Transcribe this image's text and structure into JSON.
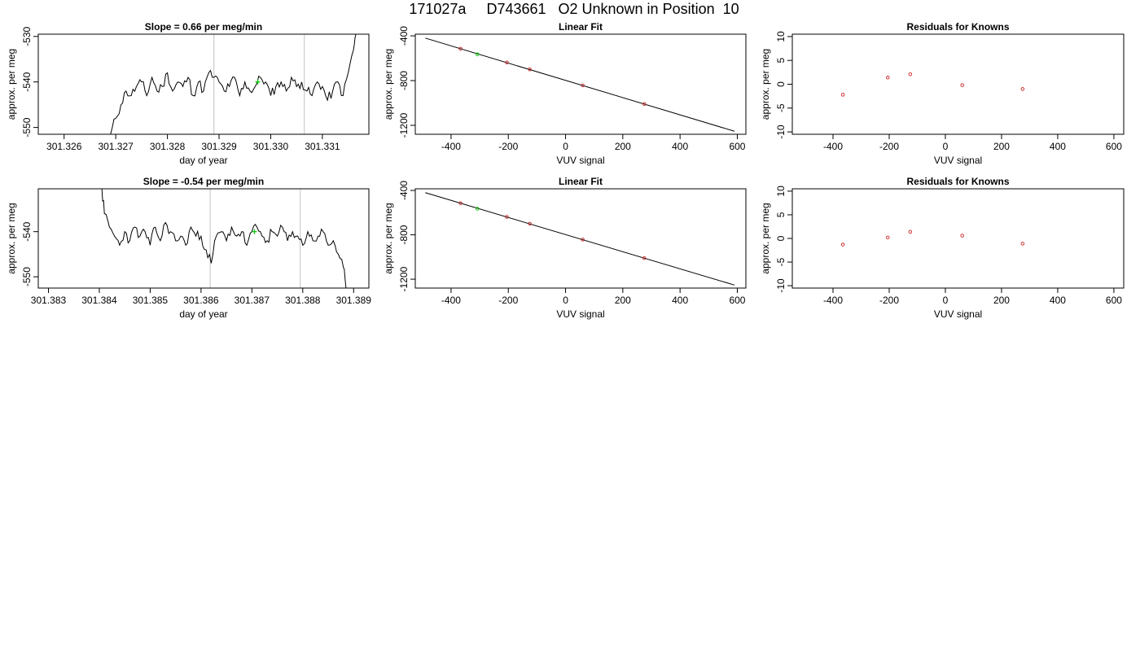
{
  "figure": {
    "title": "171027a     D743661   O2 Unknown in Position  10"
  },
  "chart_data": [
    {
      "type": "line",
      "title": "Slope =  0.66  per meg/min",
      "xlabel": "day of year",
      "ylabel": "approx. per meg",
      "xlim": [
        301.3255,
        301.3319
      ],
      "ylim": [
        -551.5,
        -529.5
      ],
      "xticks": [
        "301.326",
        "301.327",
        "301.328",
        "301.329",
        "301.330",
        "301.331"
      ],
      "yticks": [
        "-530",
        "-540",
        "-550"
      ],
      "vlines": [
        301.3289,
        301.33065
      ],
      "vline_color": "#cccccc",
      "line_color": "#000000",
      "marker": {
        "x": 301.32975,
        "y": -540.0,
        "color": "#00cc00"
      },
      "seed": 11,
      "x": [
        301.3269,
        301.327,
        301.3271,
        301.3272,
        301.3273,
        301.3274,
        301.3275,
        301.3276,
        301.3277,
        301.3278,
        301.3279,
        301.328,
        301.3281,
        301.3282,
        301.3283,
        301.3284,
        301.3285,
        301.3286,
        301.3287,
        301.3288,
        301.3289,
        301.329,
        301.3291,
        301.3292,
        301.3293,
        301.3294,
        301.3295,
        301.3296,
        301.3297,
        301.3298,
        301.3299,
        301.33,
        301.3301,
        301.3302,
        301.3303,
        301.3304,
        301.3305,
        301.3306,
        301.3307,
        301.3308,
        301.3309,
        301.331,
        301.3311,
        301.3312,
        301.3313,
        301.3314,
        301.3315,
        301.3316,
        301.33165
      ],
      "y": [
        -551.5,
        -548,
        -545,
        -542,
        -543,
        -541,
        -540,
        -543,
        -539,
        -542,
        -541,
        -538,
        -542,
        -540,
        -541,
        -539,
        -543,
        -540,
        -542,
        -538,
        -539,
        -540,
        -542,
        -541,
        -539,
        -543,
        -540,
        -542,
        -541,
        -539,
        -540,
        -543,
        -541,
        -540,
        -542,
        -539,
        -541,
        -540,
        -542,
        -543,
        -540,
        -541,
        -544,
        -542,
        -540,
        -543,
        -538,
        -533,
        -529.5
      ]
    },
    {
      "type": "scatter+line",
      "title": "Linear Fit",
      "xlabel": "VUV signal",
      "ylabel": "approx. per meg",
      "xlim": [
        -525,
        630
      ],
      "ylim": [
        -1280,
        -385
      ],
      "xticks": [
        "-400",
        "-200",
        "0",
        "200",
        "400",
        "600"
      ],
      "yticks": [
        "-400",
        "-800",
        "-1200"
      ],
      "fit_line": {
        "x": [
          -490,
          590
        ],
        "y": [
          -420,
          -1253
        ]
      },
      "knowns": {
        "x": [
          -367,
          -205,
          -125,
          60,
          275
        ],
        "y": [
          -515,
          -638,
          -700,
          -843,
          -1010
        ],
        "color": "#cc2222"
      },
      "unknown": {
        "x": [
          -308
        ],
        "y": [
          -565
        ],
        "color": "#00cc00"
      }
    },
    {
      "type": "scatter",
      "title": "Residuals for Knowns",
      "xlabel": "VUV signal",
      "ylabel": "approx. per meg",
      "xlim": [
        -545,
        635
      ],
      "ylim": [
        -10.5,
        10.5
      ],
      "xticks": [
        "-400",
        "-200",
        "0",
        "200",
        "400",
        "600"
      ],
      "yticks": [
        "-10",
        "-5",
        "0",
        "5",
        "10"
      ],
      "points": {
        "x": [
          -365,
          -205,
          -125,
          60,
          275
        ],
        "y": [
          -2.2,
          1.4,
          2.1,
          -0.2,
          -1.0
        ],
        "color": "#cc2222"
      }
    },
    {
      "type": "line",
      "title": "Slope =  -0.54  per meg/min",
      "xlabel": "day of year",
      "ylabel": "approx. per meg",
      "xlim": [
        301.3828,
        301.3893
      ],
      "ylim": [
        -552.5,
        -530.5
      ],
      "xticks": [
        "301.383",
        "301.384",
        "301.385",
        "301.386",
        "301.387",
        "301.388",
        "301.389"
      ],
      "yticks": [
        "-540",
        "-550"
      ],
      "vlines": [
        301.38618,
        301.38795
      ],
      "vline_color": "#cccccc",
      "line_color": "#000000",
      "marker": {
        "x": 301.38705,
        "y": -540.0,
        "color": "#00cc00"
      },
      "seed": 23,
      "x": [
        301.38405,
        301.3841,
        301.3842,
        301.3843,
        301.3844,
        301.3845,
        301.3846,
        301.3847,
        301.3848,
        301.3849,
        301.385,
        301.3851,
        301.3852,
        301.3853,
        301.3854,
        301.3855,
        301.3856,
        301.3857,
        301.3858,
        301.3859,
        301.386,
        301.3861,
        301.3862,
        301.3863,
        301.3864,
        301.3865,
        301.3866,
        301.3867,
        301.3868,
        301.3869,
        301.387,
        301.3871,
        301.3872,
        301.3873,
        301.3874,
        301.3875,
        301.3876,
        301.3877,
        301.3878,
        301.3879,
        301.388,
        301.3881,
        301.3882,
        301.3883,
        301.3884,
        301.3885,
        301.3886,
        301.3887,
        301.3888,
        301.38885
      ],
      "y": [
        -530.5,
        -536,
        -539,
        -541,
        -543,
        -540,
        -542,
        -539,
        -541,
        -540,
        -543,
        -539,
        -542,
        -538,
        -540,
        -542,
        -541,
        -543,
        -539,
        -541,
        -541,
        -544,
        -547,
        -541,
        -540,
        -542,
        -539,
        -541,
        -540,
        -543,
        -540,
        -539,
        -541,
        -542,
        -540,
        -541,
        -539,
        -542,
        -540,
        -541,
        -543,
        -540,
        -542,
        -541,
        -540,
        -543,
        -542,
        -545,
        -548,
        -552.5
      ]
    },
    {
      "type": "scatter+line",
      "title": "Linear Fit",
      "xlabel": "VUV signal",
      "ylabel": "approx. per meg",
      "xlim": [
        -525,
        630
      ],
      "ylim": [
        -1280,
        -385
      ],
      "xticks": [
        "-400",
        "-200",
        "0",
        "200",
        "400",
        "600"
      ],
      "yticks": [
        "-400",
        "-800",
        "-1200"
      ],
      "fit_line": {
        "x": [
          -490,
          590
        ],
        "y": [
          -420,
          -1253
        ]
      },
      "knowns": {
        "x": [
          -367,
          -205,
          -125,
          60,
          275
        ],
        "y": [
          -515,
          -638,
          -700,
          -843,
          -1010
        ],
        "color": "#cc2222"
      },
      "unknown": {
        "x": [
          -308
        ],
        "y": [
          -565
        ],
        "color": "#00cc00"
      }
    },
    {
      "type": "scatter",
      "title": "Residuals for Knowns",
      "xlabel": "VUV signal",
      "ylabel": "approx. per meg",
      "xlim": [
        -545,
        635
      ],
      "ylim": [
        -10.5,
        10.5
      ],
      "xticks": [
        "-400",
        "-200",
        "0",
        "200",
        "400",
        "600"
      ],
      "yticks": [
        "-10",
        "-5",
        "0",
        "5",
        "10"
      ],
      "points": {
        "x": [
          -365,
          -205,
          -125,
          60,
          275
        ],
        "y": [
          -1.3,
          0.2,
          1.4,
          0.6,
          -1.1
        ],
        "color": "#cc2222"
      }
    }
  ]
}
